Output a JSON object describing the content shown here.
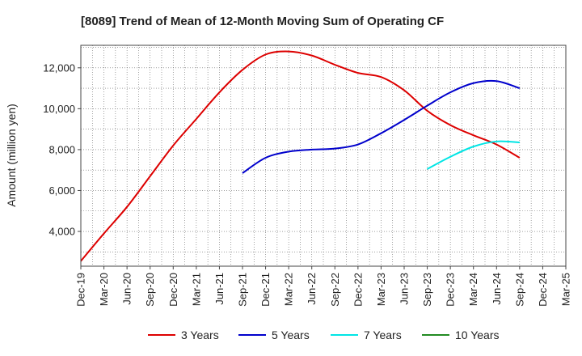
{
  "chart_data": {
    "type": "line",
    "title": "[8089]  Trend of Mean of 12-Month Moving Sum of Operating CF",
    "xlabel": "",
    "ylabel": "Amount (million yen)",
    "ylim": [
      2300,
      13100
    ],
    "y_ticks": [
      4000,
      6000,
      8000,
      10000,
      12000
    ],
    "y_tick_labels": [
      "4,000",
      "6,000",
      "8,000",
      "10,000",
      "12,000"
    ],
    "x_categories": [
      "Dec-19",
      "Mar-20",
      "Jun-20",
      "Sep-20",
      "Dec-20",
      "Mar-21",
      "Jun-21",
      "Sep-21",
      "Dec-21",
      "Mar-22",
      "Jun-22",
      "Sep-22",
      "Dec-22",
      "Mar-23",
      "Jun-23",
      "Sep-23",
      "Dec-23",
      "Mar-24",
      "Jun-24",
      "Sep-24",
      "Dec-24",
      "Mar-25"
    ],
    "grid": true,
    "legend_position": "bottom",
    "series": [
      {
        "name": "3 Years",
        "color": "#dd0000",
        "points": [
          [
            0,
            2550
          ],
          [
            1,
            3900
          ],
          [
            2,
            5200
          ],
          [
            3,
            6700
          ],
          [
            4,
            8200
          ],
          [
            5,
            9500
          ],
          [
            6,
            10800
          ],
          [
            7,
            11900
          ],
          [
            8,
            12650
          ],
          [
            9,
            12800
          ],
          [
            10,
            12600
          ],
          [
            11,
            12150
          ],
          [
            12,
            11750
          ],
          [
            13,
            11550
          ],
          [
            14,
            10900
          ],
          [
            15,
            9900
          ],
          [
            16,
            9200
          ],
          [
            17,
            8700
          ],
          [
            18,
            8250
          ],
          [
            19,
            7600
          ]
        ]
      },
      {
        "name": "5 Years",
        "color": "#0000cc",
        "points": [
          [
            7,
            6850
          ],
          [
            8,
            7600
          ],
          [
            9,
            7900
          ],
          [
            10,
            8000
          ],
          [
            11,
            8050
          ],
          [
            12,
            8250
          ],
          [
            13,
            8800
          ],
          [
            14,
            9450
          ],
          [
            15,
            10150
          ],
          [
            16,
            10800
          ],
          [
            17,
            11250
          ],
          [
            18,
            11350
          ],
          [
            19,
            11000
          ]
        ]
      },
      {
        "name": "7 Years",
        "color": "#00e5e5",
        "points": [
          [
            15,
            7050
          ],
          [
            16,
            7650
          ],
          [
            17,
            8150
          ],
          [
            18,
            8400
          ],
          [
            19,
            8350
          ]
        ]
      },
      {
        "name": "10 Years",
        "color": "#228b22",
        "points": []
      }
    ]
  }
}
